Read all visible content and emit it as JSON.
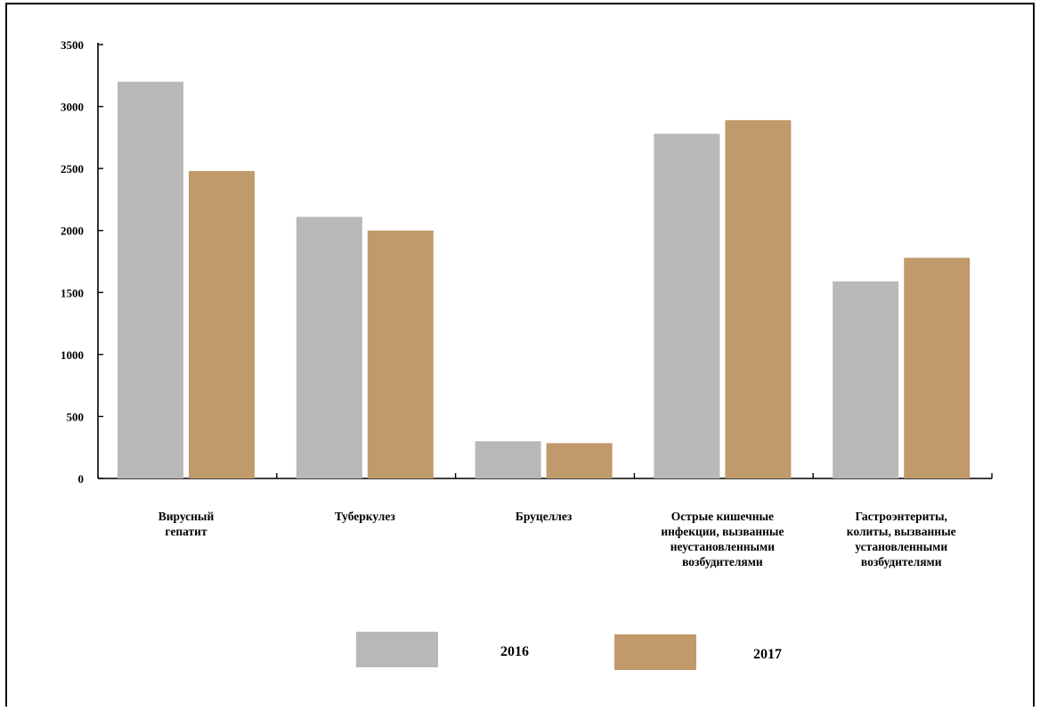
{
  "chart_data": {
    "type": "bar",
    "title": "",
    "xlabel": "",
    "ylabel": "",
    "ylim": [
      0,
      3500
    ],
    "yticks": [
      "0",
      "500",
      "1000",
      "1500",
      "2000",
      "2500",
      "3000",
      "3500"
    ],
    "categories": [
      [
        "Вирусный",
        "гепатит"
      ],
      [
        "Туберкулез"
      ],
      [
        "Бруцеллез"
      ],
      [
        "Острые кишечные",
        "инфекции, вызванные",
        "неустановленными",
        "возбудителями"
      ],
      [
        "Гастроэнтериты,",
        "колиты, вызванные",
        "установленными",
        "возбудителями"
      ]
    ],
    "series": [
      {
        "name": "2016",
        "color": "#b8b8b8",
        "values": [
          3200,
          2110,
          300,
          2780,
          1590
        ]
      },
      {
        "name": "2017",
        "color": "#c19a6b",
        "values": [
          2480,
          2000,
          285,
          2890,
          1780
        ]
      }
    ],
    "legend_position": "bottom",
    "grid": false
  }
}
